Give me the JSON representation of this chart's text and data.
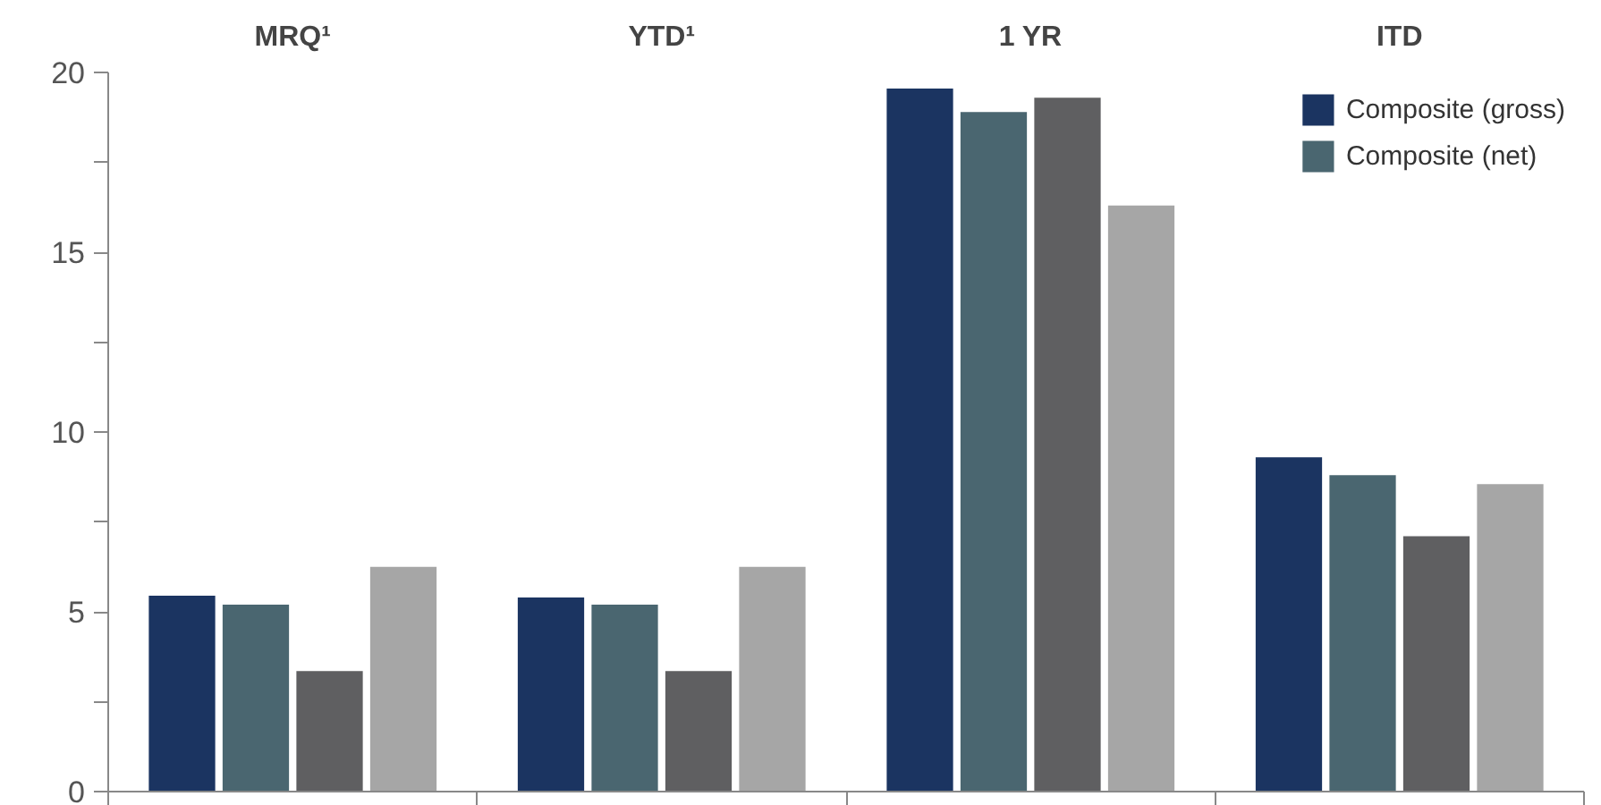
{
  "chart_data": {
    "type": "bar",
    "categories": [
      "MRQ¹",
      "YTD¹",
      "1 YR",
      "ITD"
    ],
    "series": [
      {
        "name": "Composite (gross)",
        "color": "#1b3461",
        "values": [
          5.45,
          5.4,
          19.55,
          9.3
        ]
      },
      {
        "name": "Composite (net)",
        "color": "#4a6670",
        "values": [
          5.2,
          5.2,
          18.9,
          8.8
        ]
      },
      {
        "color": "#5f5f61",
        "values": [
          3.35,
          3.35,
          19.3,
          7.1
        ]
      },
      {
        "color": "#a6a6a6",
        "values": [
          6.25,
          6.25,
          16.3,
          8.55
        ]
      }
    ],
    "ylim": [
      0,
      20
    ],
    "yticks": [
      0,
      {
        "value": 2.5,
        "label": null
      },
      5,
      {
        "value": 7.5,
        "label": null
      },
      10,
      {
        "value": 12.5,
        "label": null
      },
      15,
      {
        "value": 17.5,
        "label": null
      },
      20
    ],
    "grid": false,
    "legend": "top right"
  }
}
